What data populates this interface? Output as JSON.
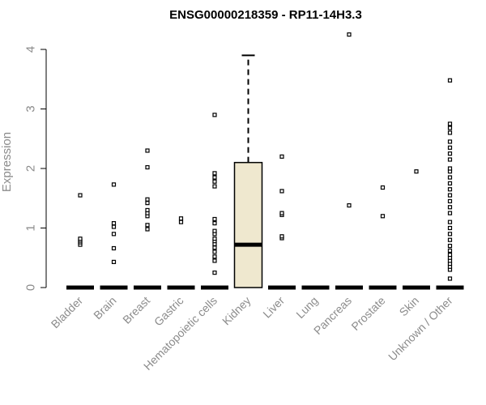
{
  "chart_data": {
    "type": "box",
    "title": "ENSG00000218359 - RP11-14H3.3",
    "xlabel": "",
    "ylabel": "Expression",
    "ylim": [
      0,
      4.25
    ],
    "yticks": [
      0,
      1,
      2,
      3,
      4
    ],
    "grid": false,
    "box_fill": "#efe8cf",
    "categories": [
      "Bladder",
      "Brain",
      "Breast",
      "Gastric",
      "Hematopoietic cells",
      "Kidney",
      "Liver",
      "Lung",
      "Pancreas",
      "Prostate",
      "Skin",
      "Unknown / Other"
    ],
    "boxes": [
      {
        "category": "Bladder",
        "q1": 0,
        "median": 0,
        "q3": 0,
        "whisker_low": 0,
        "whisker_high": 0,
        "outliers": [
          0.72,
          0.76,
          0.79,
          0.82,
          1.55
        ]
      },
      {
        "category": "Brain",
        "q1": 0,
        "median": 0,
        "q3": 0,
        "whisker_low": 0,
        "whisker_high": 0,
        "outliers": [
          0.43,
          0.66,
          0.9,
          1.02,
          1.08,
          1.73
        ]
      },
      {
        "category": "Breast",
        "q1": 0,
        "median": 0,
        "q3": 0,
        "whisker_low": 0,
        "whisker_high": 0,
        "outliers": [
          0.98,
          1.05,
          1.2,
          1.25,
          1.3,
          1.42,
          1.48,
          2.02,
          2.3
        ]
      },
      {
        "category": "Gastric",
        "q1": 0,
        "median": 0,
        "q3": 0,
        "whisker_low": 0,
        "whisker_high": 0,
        "outliers": [
          1.1,
          1.16
        ]
      },
      {
        "category": "Hematopoietic cells",
        "q1": 0,
        "median": 0,
        "q3": 0,
        "whisker_low": 0,
        "whisker_high": 0,
        "outliers": [
          0.25,
          0.45,
          0.52,
          0.6,
          0.67,
          0.73,
          0.78,
          0.82,
          0.9,
          0.95,
          1.08,
          1.15,
          1.7,
          1.78,
          1.85,
          1.92,
          2.9
        ]
      },
      {
        "category": "Kidney",
        "q1": 0,
        "median": 0.72,
        "q3": 2.1,
        "whisker_low": 0,
        "whisker_high": 3.9,
        "outliers": []
      },
      {
        "category": "Liver",
        "q1": 0,
        "median": 0,
        "q3": 0,
        "whisker_low": 0,
        "whisker_high": 0,
        "outliers": [
          0.83,
          0.86,
          1.22,
          1.25,
          1.62,
          2.2
        ]
      },
      {
        "category": "Lung",
        "q1": 0,
        "median": 0,
        "q3": 0,
        "whisker_low": 0,
        "whisker_high": 0,
        "outliers": []
      },
      {
        "category": "Pancreas",
        "q1": 0,
        "median": 0,
        "q3": 0,
        "whisker_low": 0,
        "whisker_high": 0,
        "outliers": [
          1.38,
          4.25
        ]
      },
      {
        "category": "Prostate",
        "q1": 0,
        "median": 0,
        "q3": 0,
        "whisker_low": 0,
        "whisker_high": 0,
        "outliers": [
          1.2,
          1.68
        ]
      },
      {
        "category": "Skin",
        "q1": 0,
        "median": 0,
        "q3": 0,
        "whisker_low": 0,
        "whisker_high": 0,
        "outliers": [
          1.95
        ]
      },
      {
        "category": "Unknown / Other",
        "q1": 0,
        "median": 0,
        "q3": 0,
        "whisker_low": 0,
        "whisker_high": 0,
        "outliers": [
          0.15,
          0.3,
          0.35,
          0.4,
          0.45,
          0.5,
          0.55,
          0.62,
          0.7,
          0.8,
          0.9,
          1.0,
          1.1,
          1.25,
          1.35,
          1.45,
          1.55,
          1.65,
          1.75,
          1.85,
          1.95,
          2.0,
          2.15,
          2.25,
          2.35,
          2.45,
          2.6,
          2.68,
          2.75,
          3.48
        ]
      }
    ]
  }
}
